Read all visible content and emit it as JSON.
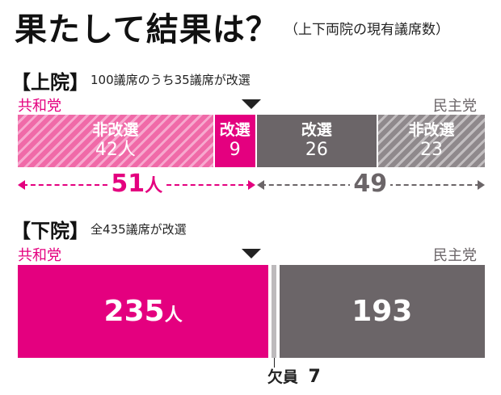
{
  "title": "果たして結果は？",
  "subtitle": "（上下両院の現有議席数）",
  "chart_data": [
    {
      "type": "bar",
      "chamber": "【上院】",
      "note": "100議席のうち35議席が改選",
      "left_party": "共和党",
      "right_party": "民主党",
      "segments": [
        {
          "party": "共和党",
          "label": "非改選",
          "value": 42,
          "unit": "人",
          "color": "#f06aa8",
          "pattern": "hatched"
        },
        {
          "party": "共和党",
          "label": "改選",
          "value": 9,
          "unit": "",
          "color": "#e4007f",
          "pattern": "solid"
        },
        {
          "party": "民主党",
          "label": "改選",
          "value": 26,
          "unit": "",
          "color": "#6b6568",
          "pattern": "solid"
        },
        {
          "party": "民主党",
          "label": "非改選",
          "value": 23,
          "unit": "",
          "color": "#8f898c",
          "pattern": "hatched"
        }
      ],
      "totals": [
        {
          "party": "共和党",
          "value": 51,
          "unit": "人"
        },
        {
          "party": "民主党",
          "value": 49,
          "unit": ""
        }
      ],
      "total_seats": 100,
      "majority_marker": 50
    },
    {
      "type": "bar",
      "chamber": "【下院】",
      "note": "全435議席が改選",
      "left_party": "共和党",
      "right_party": "民主党",
      "segments": [
        {
          "party": "共和党",
          "label": "",
          "value": 235,
          "unit": "人",
          "color": "#e4007f",
          "pattern": "solid"
        },
        {
          "party": "欠員",
          "label": "欠員",
          "value": 7,
          "unit": "",
          "color": "#bdbabc",
          "pattern": "solid"
        },
        {
          "party": "民主党",
          "label": "",
          "value": 193,
          "unit": "",
          "color": "#6b6568",
          "pattern": "solid"
        }
      ],
      "vacancy_label": "欠員",
      "vacancy_value": 7,
      "total_seats": 435,
      "majority_marker": 217.5
    }
  ],
  "colors": {
    "republican": "#e4007f",
    "democrat": "#6b6568"
  }
}
